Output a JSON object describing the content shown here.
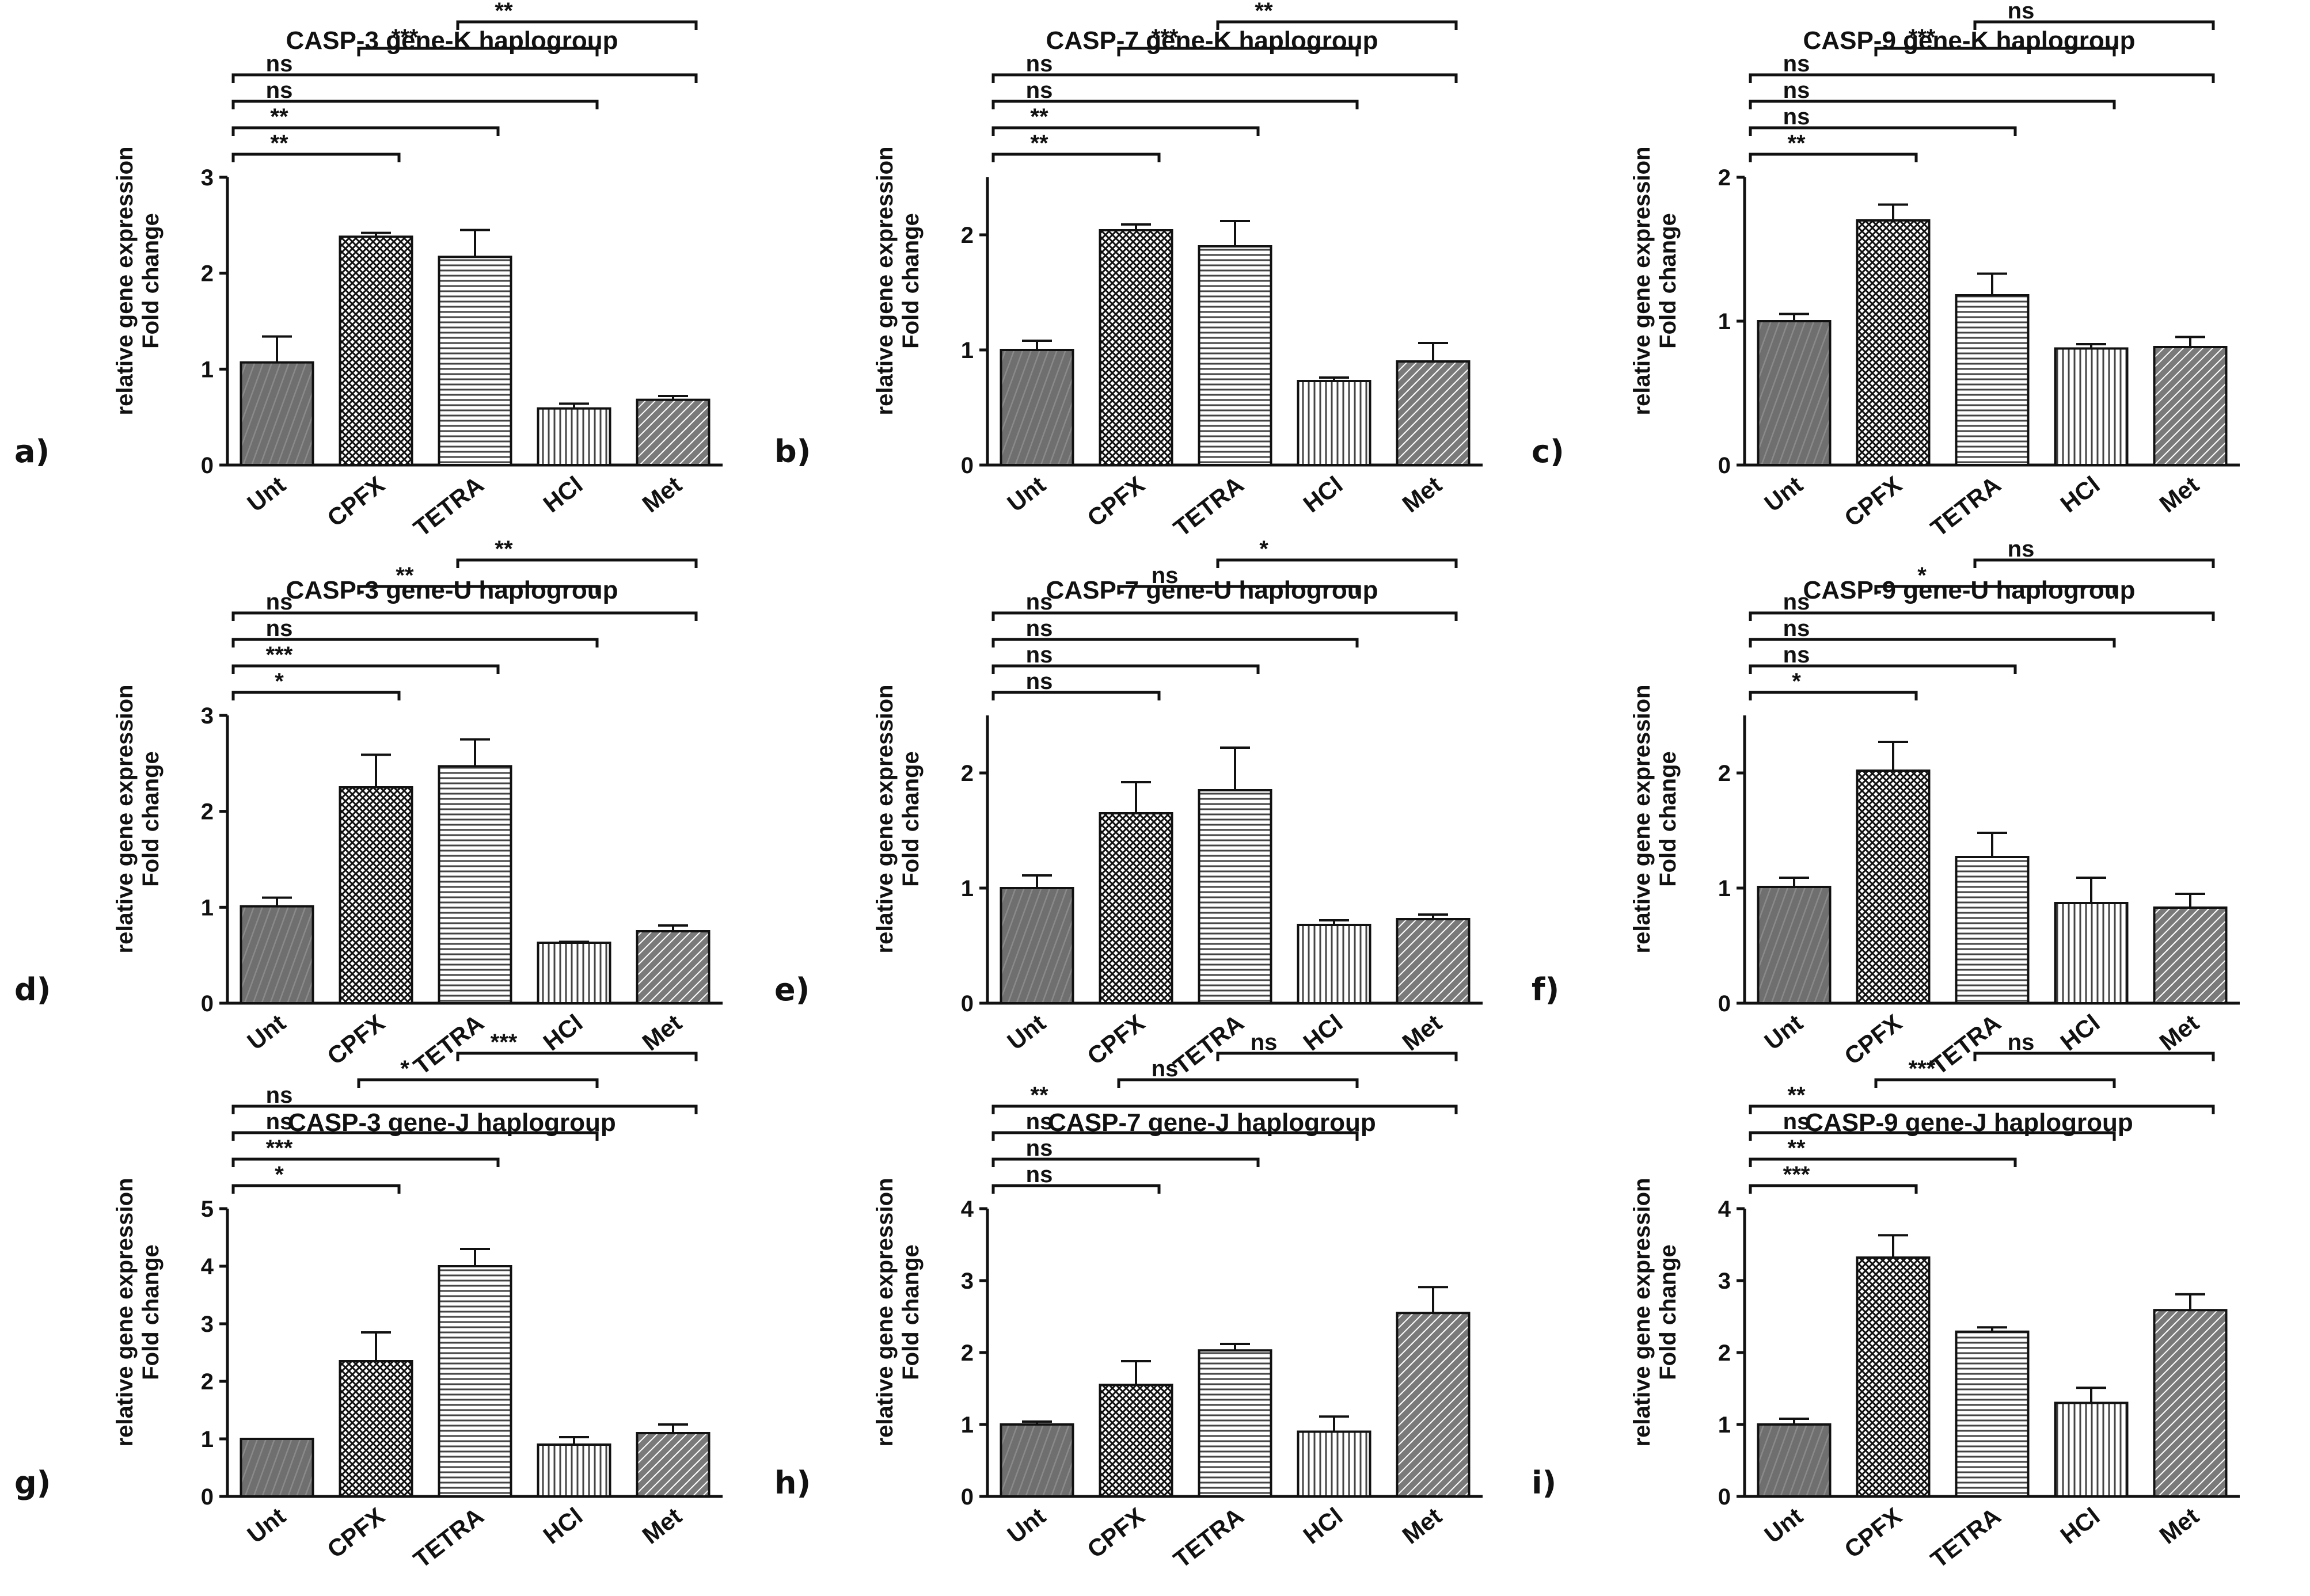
{
  "figure": {
    "background": "#ffffff",
    "bar_colors": {
      "dark": "#6f6f6f",
      "white": "#ffffff",
      "edge": "#111111"
    }
  },
  "chart_data": [
    {
      "panel": "a)",
      "type": "bar",
      "title": "CASP-3 gene-K haplogroup",
      "ylabel": [
        "relative gene expression",
        "Fold change"
      ],
      "ylim": [
        0,
        3
      ],
      "yticks": [
        0,
        1,
        2,
        3
      ],
      "categories": [
        "Unt",
        "CPFX",
        "TETRA",
        "HCl",
        "Met"
      ],
      "values": [
        1.07,
        2.38,
        2.17,
        0.59,
        0.68
      ],
      "errors": [
        0.27,
        0.04,
        0.28,
        0.05,
        0.04
      ],
      "comparisons": [
        {
          "from": 0,
          "to": 1,
          "label": "**"
        },
        {
          "from": 0,
          "to": 2,
          "label": "**"
        },
        {
          "from": 0,
          "to": 3,
          "label": "ns"
        },
        {
          "from": 0,
          "to": 4,
          "label": "ns"
        },
        {
          "from": 1,
          "to": 3,
          "label": "***"
        },
        {
          "from": 2,
          "to": 4,
          "label": "**"
        }
      ]
    },
    {
      "panel": "b)",
      "type": "bar",
      "title": "CASP-7 gene-K haplogroup",
      "ylabel": [
        "relative gene expression",
        "Fold change"
      ],
      "ylim": [
        0,
        2.5
      ],
      "yticks": [
        0,
        1,
        2
      ],
      "categories": [
        "Unt",
        "CPFX",
        "TETRA",
        "HCl",
        "Met"
      ],
      "values": [
        1.0,
        2.04,
        1.9,
        0.73,
        0.9
      ],
      "errors": [
        0.08,
        0.05,
        0.22,
        0.03,
        0.16
      ],
      "comparisons": [
        {
          "from": 0,
          "to": 1,
          "label": "**"
        },
        {
          "from": 0,
          "to": 2,
          "label": "**"
        },
        {
          "from": 0,
          "to": 3,
          "label": "ns"
        },
        {
          "from": 0,
          "to": 4,
          "label": "ns"
        },
        {
          "from": 1,
          "to": 3,
          "label": "***"
        },
        {
          "from": 2,
          "to": 4,
          "label": "**"
        }
      ]
    },
    {
      "panel": "c)",
      "type": "bar",
      "title": "CASP-9 gene-K haplogroup",
      "ylabel": [
        "relative gene expression",
        "Fold change"
      ],
      "ylim": [
        0,
        2
      ],
      "yticks": [
        0,
        1,
        2
      ],
      "categories": [
        "Unt",
        "CPFX",
        "TETRA",
        "HCl",
        "Met"
      ],
      "values": [
        1.0,
        1.7,
        1.18,
        0.81,
        0.82
      ],
      "errors": [
        0.05,
        0.11,
        0.15,
        0.03,
        0.07
      ],
      "comparisons": [
        {
          "from": 0,
          "to": 1,
          "label": "**"
        },
        {
          "from": 0,
          "to": 2,
          "label": "ns"
        },
        {
          "from": 0,
          "to": 3,
          "label": "ns"
        },
        {
          "from": 0,
          "to": 4,
          "label": "ns"
        },
        {
          "from": 1,
          "to": 3,
          "label": "***"
        },
        {
          "from": 2,
          "to": 4,
          "label": "ns"
        }
      ]
    },
    {
      "panel": "d)",
      "type": "bar",
      "title": "CASP-3 gene-U haplogroup",
      "ylabel": [
        "relative gene expression",
        "Fold change"
      ],
      "ylim": [
        0,
        3
      ],
      "yticks": [
        0,
        1,
        2,
        3
      ],
      "categories": [
        "Unt",
        "CPFX",
        "TETRA",
        "HCl",
        "Met"
      ],
      "values": [
        1.01,
        2.25,
        2.47,
        0.63,
        0.75
      ],
      "errors": [
        0.09,
        0.34,
        0.28,
        0.01,
        0.06
      ],
      "comparisons": [
        {
          "from": 0,
          "to": 1,
          "label": "*"
        },
        {
          "from": 0,
          "to": 2,
          "label": "***"
        },
        {
          "from": 0,
          "to": 3,
          "label": "ns"
        },
        {
          "from": 0,
          "to": 4,
          "label": "ns"
        },
        {
          "from": 1,
          "to": 3,
          "label": "**"
        },
        {
          "from": 2,
          "to": 4,
          "label": "**"
        }
      ]
    },
    {
      "panel": "e)",
      "type": "bar",
      "title": "CASP-7 gene-U haplogroup",
      "ylabel": [
        "relative gene expression",
        "Fold change"
      ],
      "ylim": [
        0,
        2.5
      ],
      "yticks": [
        0,
        1,
        2
      ],
      "categories": [
        "Unt",
        "CPFX",
        "TETRA",
        "HCl",
        "Met"
      ],
      "values": [
        1.0,
        1.65,
        1.85,
        0.68,
        0.73
      ],
      "errors": [
        0.11,
        0.27,
        0.37,
        0.04,
        0.04
      ],
      "comparisons": [
        {
          "from": 0,
          "to": 1,
          "label": "ns"
        },
        {
          "from": 0,
          "to": 2,
          "label": "ns"
        },
        {
          "from": 0,
          "to": 3,
          "label": "ns"
        },
        {
          "from": 0,
          "to": 4,
          "label": "ns"
        },
        {
          "from": 1,
          "to": 3,
          "label": "ns"
        },
        {
          "from": 2,
          "to": 4,
          "label": "*"
        }
      ]
    },
    {
      "panel": "f)",
      "type": "bar",
      "title": "CASP-9 gene-U haplogroup",
      "ylabel": [
        "relative gene expression",
        "Fold change"
      ],
      "ylim": [
        0,
        2.5
      ],
      "yticks": [
        0,
        1,
        2
      ],
      "categories": [
        "Unt",
        "CPFX",
        "TETRA",
        "HCl",
        "Met"
      ],
      "values": [
        1.01,
        2.02,
        1.27,
        0.87,
        0.83
      ],
      "errors": [
        0.08,
        0.25,
        0.21,
        0.22,
        0.12
      ],
      "comparisons": [
        {
          "from": 0,
          "to": 1,
          "label": "*"
        },
        {
          "from": 0,
          "to": 2,
          "label": "ns"
        },
        {
          "from": 0,
          "to": 3,
          "label": "ns"
        },
        {
          "from": 0,
          "to": 4,
          "label": "ns"
        },
        {
          "from": 1,
          "to": 3,
          "label": "*"
        },
        {
          "from": 2,
          "to": 4,
          "label": "ns"
        }
      ]
    },
    {
      "panel": "g)",
      "type": "bar",
      "title": "CASP-3 gene-J haplogroup",
      "ylabel": [
        "relative gene expression",
        "Fold change"
      ],
      "ylim": [
        0,
        5
      ],
      "yticks": [
        0,
        1,
        2,
        3,
        4,
        5
      ],
      "categories": [
        "Unt",
        "CPFX",
        "TETRA",
        "HCl",
        "Met"
      ],
      "values": [
        1.0,
        2.35,
        4.0,
        0.9,
        1.1
      ],
      "errors": [
        0.0,
        0.5,
        0.3,
        0.13,
        0.15
      ],
      "comparisons": [
        {
          "from": 0,
          "to": 1,
          "label": "*"
        },
        {
          "from": 0,
          "to": 2,
          "label": "***"
        },
        {
          "from": 0,
          "to": 3,
          "label": "ns"
        },
        {
          "from": 0,
          "to": 4,
          "label": "ns"
        },
        {
          "from": 1,
          "to": 3,
          "label": "*"
        },
        {
          "from": 2,
          "to": 4,
          "label": "***"
        }
      ]
    },
    {
      "panel": "h)",
      "type": "bar",
      "title": "CASP-7 gene-J haplogroup",
      "ylabel": [
        "relative gene expression",
        "Fold change"
      ],
      "ylim": [
        0,
        4
      ],
      "yticks": [
        0,
        1,
        2,
        3,
        4
      ],
      "categories": [
        "Unt",
        "CPFX",
        "TETRA",
        "HCl",
        "Met"
      ],
      "values": [
        1.0,
        1.55,
        2.03,
        0.9,
        2.55
      ],
      "errors": [
        0.04,
        0.33,
        0.09,
        0.21,
        0.36
      ],
      "comparisons": [
        {
          "from": 0,
          "to": 1,
          "label": "ns"
        },
        {
          "from": 0,
          "to": 2,
          "label": "ns"
        },
        {
          "from": 0,
          "to": 3,
          "label": "ns"
        },
        {
          "from": 0,
          "to": 4,
          "label": "**"
        },
        {
          "from": 1,
          "to": 3,
          "label": "ns"
        },
        {
          "from": 2,
          "to": 4,
          "label": "ns"
        }
      ]
    },
    {
      "panel": "i)",
      "type": "bar",
      "title": "CASP-9 gene-J haplogroup",
      "ylabel": [
        "relative gene expression",
        "Fold change"
      ],
      "ylim": [
        0,
        4
      ],
      "yticks": [
        0,
        1,
        2,
        3,
        4
      ],
      "categories": [
        "Unt",
        "CPFX",
        "TETRA",
        "HCl",
        "Met"
      ],
      "values": [
        1.0,
        3.32,
        2.29,
        1.3,
        2.59
      ],
      "errors": [
        0.08,
        0.31,
        0.06,
        0.21,
        0.22
      ],
      "comparisons": [
        {
          "from": 0,
          "to": 1,
          "label": "***"
        },
        {
          "from": 0,
          "to": 2,
          "label": "**"
        },
        {
          "from": 0,
          "to": 3,
          "label": "ns"
        },
        {
          "from": 0,
          "to": 4,
          "label": "**"
        },
        {
          "from": 1,
          "to": 3,
          "label": "***"
        },
        {
          "from": 2,
          "to": 4,
          "label": "ns"
        }
      ]
    }
  ]
}
